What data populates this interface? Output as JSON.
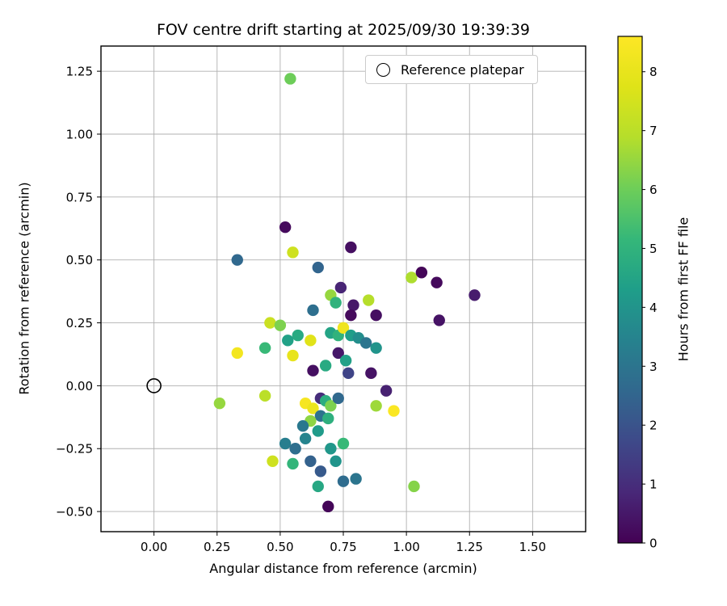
{
  "chart_data": {
    "type": "scatter",
    "title": "FOV centre drift starting at 2025/09/30 19:39:39",
    "xlabel": "Angular distance from reference (arcmin)",
    "ylabel": "Rotation from reference (arcmin)",
    "xlim": [
      -0.21,
      1.71
    ],
    "ylim": [
      -0.58,
      1.35
    ],
    "xticks": [
      0.0,
      0.25,
      0.5,
      0.75,
      1.0,
      1.25,
      1.5
    ],
    "yticks": [
      -0.5,
      -0.25,
      0.0,
      0.25,
      0.5,
      0.75,
      1.0,
      1.25
    ],
    "grid": true,
    "colormap": "viridis",
    "legend": {
      "label": "Reference platepar",
      "marker": "open-circle"
    },
    "colorbar": {
      "label": "Hours from first FF file",
      "vmin": 0,
      "vmax": 8.6,
      "ticks": [
        0,
        1,
        2,
        3,
        4,
        5,
        6,
        7,
        8
      ]
    },
    "reference_point": {
      "x": 0.0,
      "y": 0.0
    },
    "points_format": [
      "x_arcmin",
      "y_arcmin",
      "hours"
    ],
    "points": [
      [
        0.54,
        1.22,
        6.0
      ],
      [
        0.52,
        0.63,
        0.2
      ],
      [
        0.33,
        0.5,
        2.6
      ],
      [
        0.55,
        0.53,
        7.4
      ],
      [
        0.65,
        0.47,
        2.5
      ],
      [
        0.78,
        0.55,
        0.3
      ],
      [
        0.74,
        0.39,
        0.8
      ],
      [
        0.7,
        0.36,
        6.5
      ],
      [
        0.72,
        0.33,
        5.0
      ],
      [
        0.79,
        0.32,
        0.5
      ],
      [
        0.78,
        0.28,
        0.2
      ],
      [
        0.85,
        0.34,
        6.9
      ],
      [
        0.88,
        0.28,
        0.3
      ],
      [
        1.02,
        0.43,
        6.8
      ],
      [
        1.06,
        0.45,
        0.1
      ],
      [
        1.12,
        0.41,
        0.2
      ],
      [
        1.13,
        0.26,
        0.4
      ],
      [
        1.27,
        0.36,
        0.6
      ],
      [
        0.46,
        0.25,
        7.3
      ],
      [
        0.5,
        0.24,
        6.2
      ],
      [
        0.44,
        0.15,
        5.2
      ],
      [
        0.53,
        0.18,
        4.4
      ],
      [
        0.57,
        0.2,
        4.7
      ],
      [
        0.55,
        0.12,
        8.0
      ],
      [
        0.62,
        0.18,
        7.8
      ],
      [
        0.63,
        0.3,
        2.8
      ],
      [
        0.7,
        0.21,
        4.5
      ],
      [
        0.73,
        0.2,
        5.0
      ],
      [
        0.75,
        0.23,
        8.2
      ],
      [
        0.78,
        0.2,
        4.3
      ],
      [
        0.81,
        0.19,
        3.8
      ],
      [
        0.84,
        0.17,
        3.0
      ],
      [
        0.88,
        0.15,
        4.0
      ],
      [
        0.33,
        0.13,
        8.3
      ],
      [
        0.63,
        0.06,
        0.3
      ],
      [
        0.68,
        0.08,
        4.7
      ],
      [
        0.73,
        0.13,
        0.5
      ],
      [
        0.76,
        0.1,
        4.4
      ],
      [
        0.77,
        0.05,
        1.6
      ],
      [
        0.86,
        0.05,
        0.4
      ],
      [
        0.92,
        -0.02,
        0.7
      ],
      [
        0.26,
        -0.07,
        6.5
      ],
      [
        0.44,
        -0.04,
        7.0
      ],
      [
        0.6,
        -0.07,
        8.4
      ],
      [
        0.63,
        -0.09,
        8.1
      ],
      [
        0.66,
        -0.05,
        1.0
      ],
      [
        0.68,
        -0.06,
        4.8
      ],
      [
        0.7,
        -0.08,
        6.2
      ],
      [
        0.73,
        -0.05,
        2.6
      ],
      [
        0.66,
        -0.12,
        2.9
      ],
      [
        0.69,
        -0.13,
        4.9
      ],
      [
        0.62,
        -0.14,
        6.4
      ],
      [
        0.59,
        -0.16,
        3.1
      ],
      [
        0.65,
        -0.18,
        4.2
      ],
      [
        0.88,
        -0.08,
        6.6
      ],
      [
        0.95,
        -0.1,
        8.5
      ],
      [
        0.52,
        -0.23,
        3.3
      ],
      [
        0.56,
        -0.25,
        2.8
      ],
      [
        0.6,
        -0.21,
        3.5
      ],
      [
        0.7,
        -0.25,
        4.1
      ],
      [
        0.75,
        -0.23,
        5.2
      ],
      [
        0.47,
        -0.3,
        7.4
      ],
      [
        0.55,
        -0.31,
        5.1
      ],
      [
        0.62,
        -0.3,
        2.4
      ],
      [
        0.66,
        -0.34,
        2.2
      ],
      [
        0.72,
        -0.3,
        4.0
      ],
      [
        0.65,
        -0.4,
        4.6
      ],
      [
        0.75,
        -0.38,
        2.7
      ],
      [
        0.8,
        -0.37,
        3.0
      ],
      [
        1.03,
        -0.4,
        6.3
      ],
      [
        0.69,
        -0.48,
        0.1
      ]
    ]
  }
}
